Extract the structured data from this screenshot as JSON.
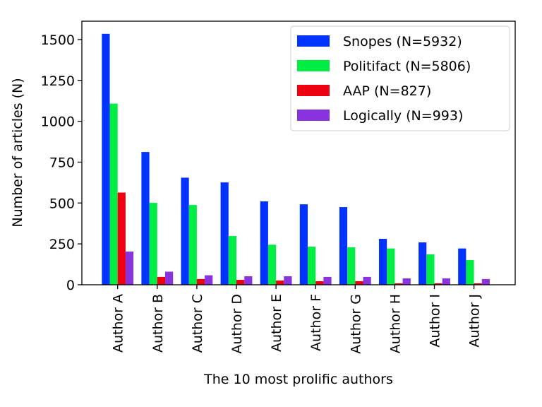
{
  "chart_data": {
    "type": "bar",
    "title": "",
    "xlabel": "The 10 most prolific authors",
    "ylabel": "Number of articles (N)",
    "ylim": [
      0,
      1612
    ],
    "yticks": [
      0,
      250,
      500,
      750,
      1000,
      1250,
      1500
    ],
    "grid": false,
    "legend_position": "top-right",
    "categories": [
      "Author A",
      "Author B",
      "Author C",
      "Author D",
      "Author E",
      "Author F",
      "Author G",
      "Author H",
      "Author I",
      "Author J"
    ],
    "series": [
      {
        "name": "Snopes (N=5932)",
        "color": "#0033ff",
        "values": [
          1535,
          812,
          655,
          626,
          510,
          492,
          475,
          281,
          259,
          222
        ]
      },
      {
        "name": "Politifact (N=5806)",
        "color": "#00ee44",
        "values": [
          1108,
          501,
          488,
          298,
          245,
          233,
          229,
          222,
          186,
          151
        ]
      },
      {
        "name": "AAP (N=827)",
        "color": "#ee0011",
        "values": [
          564,
          48,
          35,
          30,
          26,
          22,
          22,
          9,
          9,
          9
        ]
      },
      {
        "name": "Logically (N=993)",
        "color": "#8833dd",
        "values": [
          203,
          80,
          58,
          52,
          52,
          48,
          48,
          39,
          39,
          35
        ]
      }
    ]
  }
}
